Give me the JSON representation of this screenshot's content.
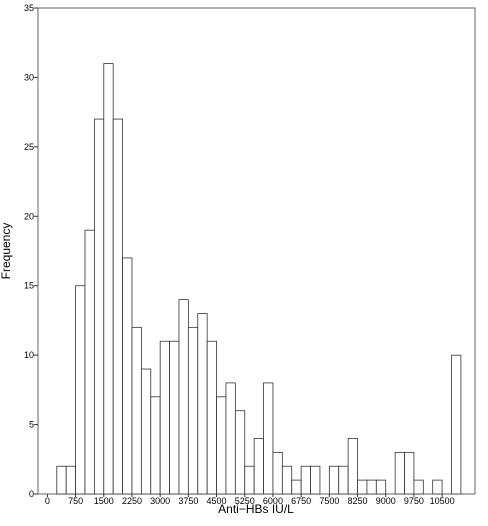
{
  "chart_data": {
    "type": "bar",
    "xlabel": "Anti−HBs  IU/L",
    "ylabel": "Frequency",
    "ylim": [
      0,
      35
    ],
    "yticks": [
      0,
      5,
      10,
      15,
      20,
      25,
      30,
      35
    ],
    "xticks": [
      0,
      750,
      1500,
      2250,
      3000,
      3750,
      4500,
      5250,
      6000,
      6750,
      7500,
      8250,
      9000,
      9750,
      10500
    ],
    "x_range": [
      -250,
      11375
    ],
    "bin_width": 250,
    "bin_start": 250,
    "values": [
      2,
      2,
      15,
      19,
      27,
      31,
      27,
      17,
      12,
      9,
      7,
      11,
      11,
      14,
      12,
      13,
      11,
      7,
      8,
      6,
      2,
      4,
      8,
      3,
      2,
      1,
      2,
      2,
      0,
      2,
      2,
      4,
      1,
      1,
      1,
      0,
      3,
      3,
      1,
      0,
      1,
      0,
      10
    ],
    "grid": false
  }
}
